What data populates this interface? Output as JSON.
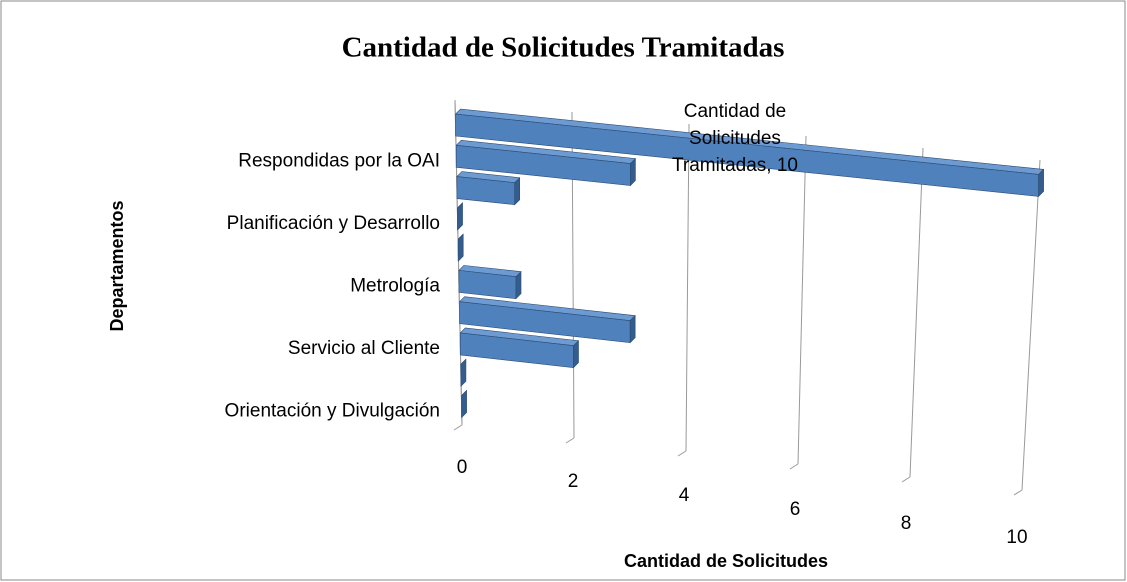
{
  "chart_data": {
    "type": "bar3d-horizontal",
    "title": "Cantidad de Solicitudes Tramitadas",
    "x_label": "Cantidad de Solicitudes",
    "y_label": "Departamentos",
    "categories": [
      null,
      "Respondidas por la OAI",
      null,
      "Planificación y Desarrollo",
      null,
      "Metrología",
      null,
      "Servicio al Cliente",
      null,
      "Orientación y Divulgación"
    ],
    "series": [
      {
        "name": "Cantidad de Solicitudes Tramitadas",
        "color": "#4f81bd",
        "values": [
          10,
          3,
          1,
          0,
          0,
          1,
          3,
          2,
          0,
          0
        ],
        "value_labels": [
          "Cantidad de Solicitudes Tramitadas, 10",
          null,
          null,
          null,
          null,
          null,
          null,
          null,
          null,
          null
        ]
      }
    ],
    "xlim": [
      0,
      10
    ],
    "xticks": [
      0,
      2,
      4,
      6,
      8,
      10
    ],
    "grid": true
  }
}
